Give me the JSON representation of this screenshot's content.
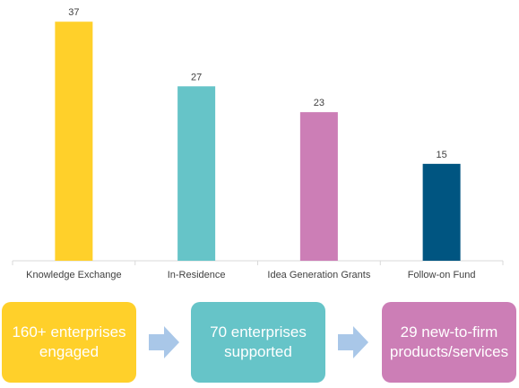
{
  "chart_data": {
    "type": "bar",
    "categories": [
      "Knowledge Exchange",
      "In-Residence",
      "Idea Generation Grants",
      "Follow-on Fund"
    ],
    "values": [
      37,
      27,
      23,
      15
    ],
    "colors": [
      "#FFD02A",
      "#66C4C8",
      "#CC7EB6",
      "#005581"
    ],
    "ylim": [
      0,
      38
    ],
    "data_labels": true,
    "grid": false,
    "legend": "none"
  },
  "summary": {
    "boxes": [
      {
        "line1": "160+ enterprises",
        "line2": "engaged",
        "color": "#FFD02A"
      },
      {
        "line1": "70 enterprises",
        "line2": "supported",
        "color": "#66C4C8"
      },
      {
        "line1": "29 new-to-firm",
        "line2": "products/services",
        "color": "#CC7EB6"
      }
    ],
    "arrow_color": "#A9C7E8",
    "arrow_icon": "right-arrow-icon"
  }
}
